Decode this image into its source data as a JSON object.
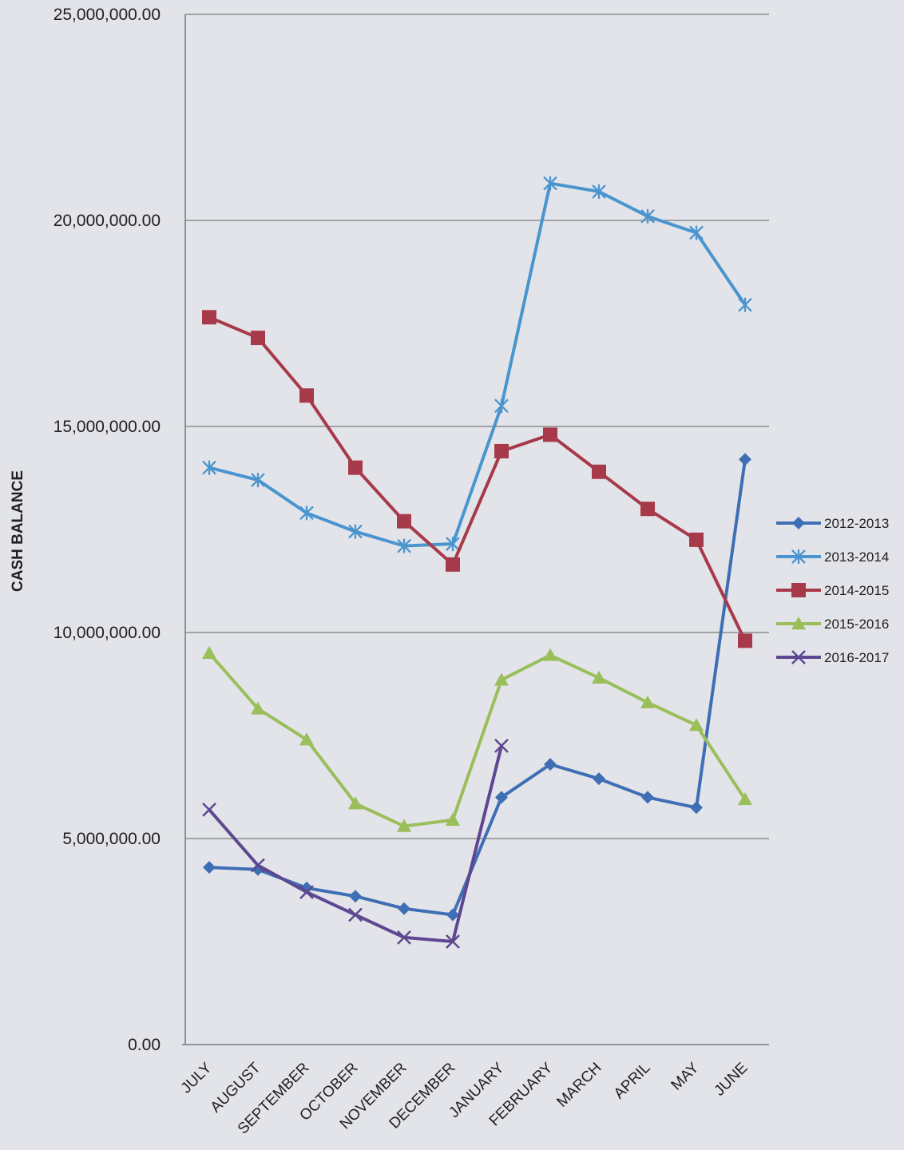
{
  "chart_data": {
    "type": "line",
    "title": "",
    "xlabel": "",
    "ylabel": "CASH BALANCE",
    "ylim": [
      0,
      25000000
    ],
    "yticks": [
      "0.00",
      "5,000,000.00",
      "10,000,000.00",
      "15,000,000.00",
      "20,000,000.00",
      "25,000,000.00"
    ],
    "ytick_values": [
      0,
      5000000,
      10000000,
      15000000,
      20000000,
      25000000
    ],
    "grid": true,
    "legend_position": "right",
    "categories": [
      "JULY",
      "AUGUST",
      "SEPTEMBER",
      "OCTOBER",
      "NOVEMBER",
      "DECEMBER",
      "JANUARY",
      "FEBRUARY",
      "MARCH",
      "APRIL",
      "MAY",
      "JUNE"
    ],
    "series": [
      {
        "name": "2012-2013",
        "color": "#3e6fb5",
        "marker": "diamond",
        "values": [
          4300000,
          4250000,
          3800000,
          3600000,
          3300000,
          3150000,
          6000000,
          6800000,
          6450000,
          6000000,
          5750000,
          14200000
        ]
      },
      {
        "name": "2013-2014",
        "color": "#4a95cf",
        "marker": "star",
        "values": [
          14000000,
          13700000,
          12900000,
          12450000,
          12100000,
          12150000,
          15500000,
          20900000,
          20700000,
          20100000,
          19700000,
          17950000
        ]
      },
      {
        "name": "2014-2015",
        "color": "#a73a4a",
        "marker": "square",
        "values": [
          17650000,
          17150000,
          15750000,
          14000000,
          12700000,
          11650000,
          14400000,
          14800000,
          13900000,
          13000000,
          12250000,
          9800000
        ]
      },
      {
        "name": "2015-2016",
        "color": "#9abe5a",
        "marker": "triangle",
        "values": [
          9500000,
          8150000,
          7400000,
          5850000,
          5300000,
          5450000,
          8850000,
          9450000,
          8900000,
          8300000,
          7750000,
          5950000
        ]
      },
      {
        "name": "2016-2017",
        "color": "#5d4790",
        "marker": "x",
        "values": [
          5700000,
          4350000,
          3700000,
          3150000,
          2600000,
          2500000,
          7250000,
          null,
          null,
          null,
          null,
          null
        ]
      }
    ]
  }
}
